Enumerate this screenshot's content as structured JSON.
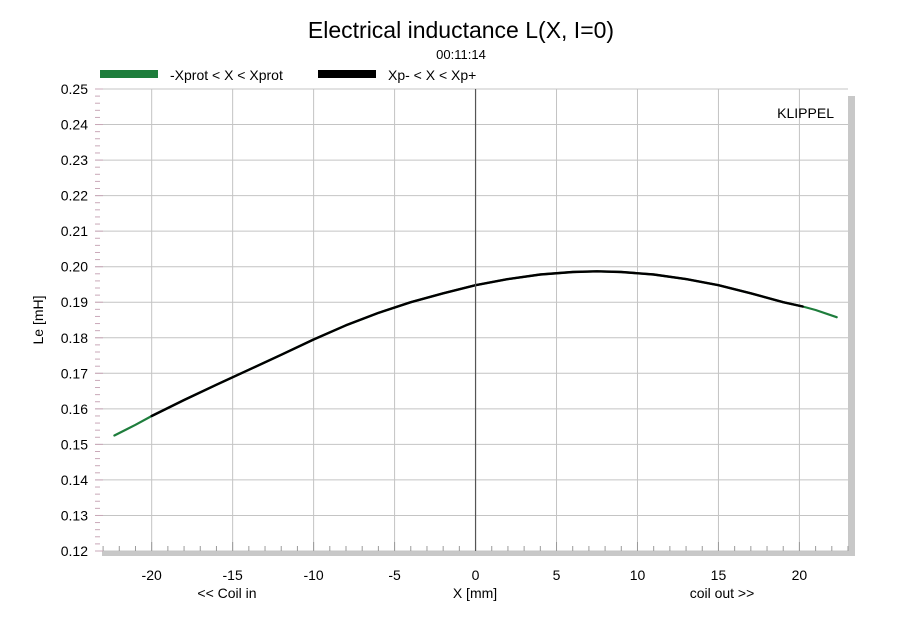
{
  "chart_data": {
    "type": "line",
    "title": "Electrical inductance L(X, I=0)",
    "subtitle": "00:11:14",
    "watermark": "KLIPPEL",
    "xlabel": "X [mm]",
    "ylabel": "Le [mH]",
    "x_left_note": "<< Coil in",
    "x_right_note": "coil out >>",
    "xlim": [
      -23.5,
      23
    ],
    "ylim": [
      0.12,
      0.25
    ],
    "x_ticks": [
      -20,
      -15,
      -10,
      -5,
      0,
      5,
      10,
      15,
      20
    ],
    "y_ticks": [
      0.12,
      0.13,
      0.14,
      0.15,
      0.16,
      0.17,
      0.18,
      0.19,
      0.2,
      0.21,
      0.22,
      0.23,
      0.24,
      0.25
    ],
    "y_tick_labels": [
      "0.12",
      "0.13",
      "0.14",
      "0.15",
      "0.16",
      "0.17",
      "0.18",
      "0.19",
      "0.20",
      "0.21",
      "0.22",
      "0.23",
      "0.24",
      "0.25"
    ],
    "grid": true,
    "legend_position": "top-left",
    "series": [
      {
        "name": "-Xprot < X < Xprot",
        "color": "#1e7d3c",
        "x": [
          -22.3,
          -21,
          -20,
          -18,
          -16,
          -14,
          -12,
          -10,
          -8,
          -6,
          -4,
          -2,
          0,
          2,
          4,
          6,
          7.5,
          9,
          11,
          13,
          15,
          17,
          19,
          20.2,
          21,
          22.3
        ],
        "y": [
          0.1525,
          0.1555,
          0.158,
          0.1625,
          0.1668,
          0.171,
          0.1752,
          0.1795,
          0.1835,
          0.187,
          0.19,
          0.1925,
          0.1948,
          0.1965,
          0.1978,
          0.1985,
          0.1987,
          0.1985,
          0.1978,
          0.1965,
          0.1948,
          0.1925,
          0.19,
          0.1888,
          0.1878,
          0.1858
        ]
      },
      {
        "name": "Xp- < X < Xp+",
        "color": "#000000",
        "x": [
          -20,
          -18,
          -16,
          -14,
          -12,
          -10,
          -8,
          -6,
          -4,
          -2,
          0,
          2,
          4,
          6,
          7.5,
          9,
          11,
          13,
          15,
          17,
          19,
          20.2
        ],
        "y": [
          0.158,
          0.1625,
          0.1668,
          0.171,
          0.1752,
          0.1795,
          0.1835,
          0.187,
          0.19,
          0.1925,
          0.1948,
          0.1965,
          0.1978,
          0.1985,
          0.1987,
          0.1985,
          0.1978,
          0.1965,
          0.1948,
          0.1925,
          0.19,
          0.1888
        ]
      }
    ]
  }
}
